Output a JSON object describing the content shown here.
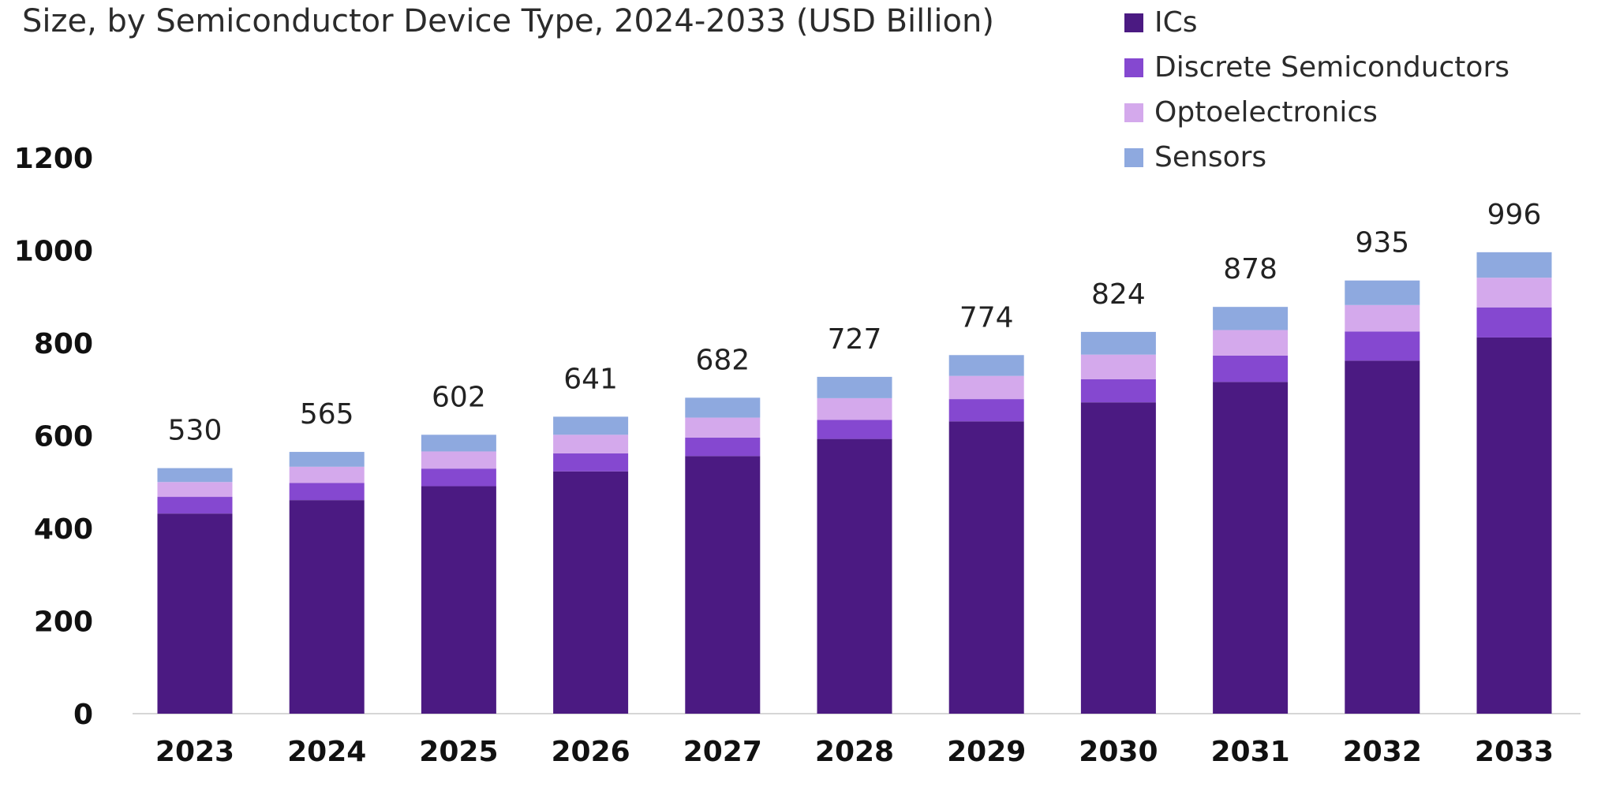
{
  "chart_data": {
    "type": "bar",
    "stacked": true,
    "title": "Size, by Semiconductor Device Type, 2024-2033 (USD Billion)",
    "xlabel": "",
    "ylabel": "",
    "ylim": [
      0,
      1200
    ],
    "yticks": [
      0,
      200,
      400,
      600,
      800,
      1000,
      1200
    ],
    "grid": false,
    "legend_position": "top-right",
    "categories": [
      "2023",
      "2024",
      "2025",
      "2026",
      "2027",
      "2028",
      "2029",
      "2030",
      "2031",
      "2032",
      "2033"
    ],
    "totals": [
      530,
      565,
      602,
      641,
      682,
      727,
      774,
      824,
      878,
      935,
      996
    ],
    "series": [
      {
        "name": "ICs",
        "color": "#4b1a82",
        "values": [
          432,
          461,
          491,
          523,
          556,
          593,
          631,
          672,
          716,
          762,
          812
        ]
      },
      {
        "name": "Discrete Semiconductors",
        "color": "#8548d0",
        "values": [
          36,
          37,
          38,
          39,
          40,
          41,
          48,
          50,
          57,
          63,
          65
        ]
      },
      {
        "name": "Optoelectronics",
        "color": "#d4a9ec",
        "values": [
          32,
          35,
          37,
          40,
          43,
          47,
          50,
          53,
          55,
          57,
          64
        ]
      },
      {
        "name": "Sensors",
        "color": "#8ea9df",
        "values": [
          30,
          32,
          36,
          39,
          43,
          46,
          45,
          49,
          50,
          53,
          55
        ]
      }
    ]
  }
}
